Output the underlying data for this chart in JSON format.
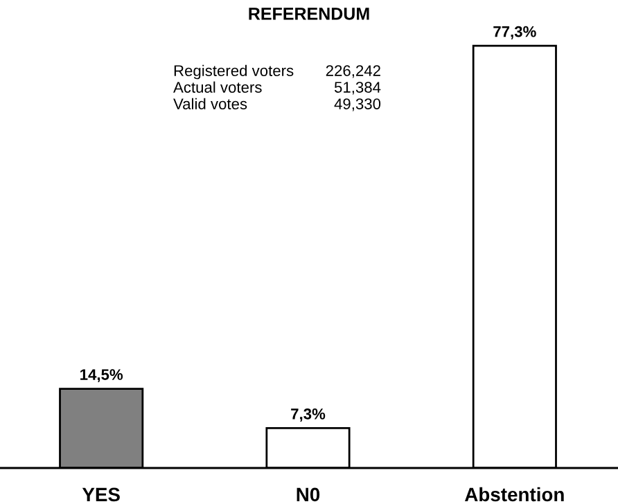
{
  "chart_data": {
    "type": "bar",
    "title": "REFERENDUM",
    "categories": [
      "YES",
      "N0",
      "Abstention"
    ],
    "values": [
      14.5,
      7.3,
      77.3
    ],
    "colors": [
      "#808080",
      "#ffffff",
      "#ffffff"
    ],
    "value_labels": [
      "14,5%",
      "7,3%",
      "77,3%"
    ],
    "annotations": [
      "Registered voters 226,242",
      "Actual voters 51,384",
      "Valid votes 49,330"
    ],
    "grid": false,
    "legend": false
  }
}
